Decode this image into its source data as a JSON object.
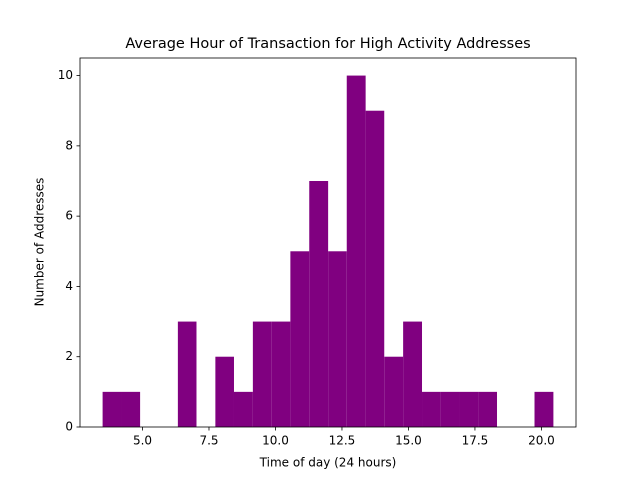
{
  "chart_data": {
    "type": "histogram",
    "title": "Average Hour of Transaction for High Activity Addresses",
    "x_label": "Time of day (24 hours)",
    "y_label": "Number of Addresses",
    "bins": [
      3.5,
      4.21,
      4.91,
      5.62,
      6.33,
      7.03,
      7.74,
      8.44,
      9.15,
      9.86,
      10.56,
      11.27,
      11.98,
      12.68,
      13.39,
      14.09,
      14.8,
      15.51,
      16.21,
      16.92,
      17.63,
      18.33,
      19.04,
      19.74,
      20.45
    ],
    "values": [
      1,
      1,
      0,
      0,
      3,
      0,
      2,
      1,
      3,
      3,
      5,
      7,
      5,
      10,
      9,
      2,
      3,
      1,
      1,
      1,
      1,
      0,
      0,
      1
    ],
    "color": "#800080",
    "xlim": [
      2.65,
      21.3
    ],
    "ylim": [
      0,
      10.5
    ],
    "xticks": [
      {
        "value": 5,
        "label": "5.0"
      },
      {
        "value": 7.5,
        "label": "7.5"
      },
      {
        "value": 10,
        "label": "10.0"
      },
      {
        "value": 12.5,
        "label": "12.5"
      },
      {
        "value": 15,
        "label": "15.0"
      },
      {
        "value": 17.5,
        "label": "17.5"
      },
      {
        "value": 20,
        "label": "20.0"
      }
    ],
    "yticks": [
      0,
      2,
      4,
      6,
      8,
      10
    ]
  }
}
